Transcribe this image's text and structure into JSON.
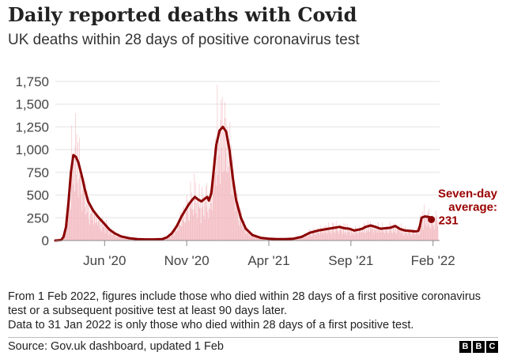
{
  "header": {
    "title": "Daily reported deaths with Covid",
    "subtitle": "UK deaths within 28 days of positive coronavirus test"
  },
  "footer": {
    "note_line1": "From 1 Feb 2022, figures include those who died within 28 days of a first positive coronavirus test or a subsequent positive test at least 90 days later.",
    "note_line2": "Data to 31 Jan 2022 is only those who died within 28 days of a first positive test.",
    "source": "Source: Gov.uk dashboard, updated 1 Feb",
    "logo": [
      "B",
      "B",
      "C"
    ]
  },
  "colors": {
    "average_line": "#8b0000",
    "daily_bars": "#f2b8be",
    "grid": "#e2e2e2",
    "axis": "#888888",
    "annotation": "#9a0000"
  },
  "chart_data": {
    "type": "line",
    "title": "Daily reported deaths with Covid",
    "subtitle": "UK deaths within 28 days of positive coronavirus test",
    "x_unit": "months since 1 Mar 2020",
    "xlim": [
      0,
      23.4
    ],
    "ylim": [
      0,
      1750
    ],
    "y_ticks": [
      0,
      250,
      500,
      750,
      1000,
      1250,
      1500,
      1750
    ],
    "y_tick_labels": [
      "0",
      "250",
      "500",
      "750",
      "1,000",
      "1,250",
      "1,500",
      "1,750"
    ],
    "x_ticks": [
      3,
      8,
      13,
      18,
      23
    ],
    "x_tick_labels": [
      "Jun '20",
      "Nov '20",
      "Apr '21",
      "Sep '21",
      "Feb '22"
    ],
    "grid": true,
    "series": [
      {
        "name": "Seven-day average",
        "x": [
          0,
          0.35,
          0.5,
          0.65,
          0.8,
          0.95,
          1.1,
          1.25,
          1.4,
          1.6,
          1.8,
          2.0,
          2.3,
          2.6,
          3.0,
          3.3,
          3.6,
          4.0,
          4.5,
          5.0,
          5.5,
          6.0,
          6.5,
          6.8,
          7.1,
          7.4,
          7.7,
          7.9,
          8.1,
          8.3,
          8.5,
          8.7,
          8.9,
          9.1,
          9.25,
          9.35,
          9.5,
          9.65,
          9.8,
          10.0,
          10.2,
          10.4,
          10.6,
          10.8,
          11.0,
          11.3,
          11.6,
          12.0,
          12.5,
          13.0,
          13.5,
          14.0,
          14.5,
          15.0,
          15.5,
          16.0,
          16.5,
          17.0,
          17.3,
          17.6,
          17.9,
          18.2,
          18.5,
          18.7,
          18.9,
          19.2,
          19.5,
          19.8,
          20.1,
          20.4,
          20.7,
          21.0,
          21.3,
          21.6,
          21.9,
          22.1,
          22.2,
          22.3,
          22.5,
          22.7,
          22.8,
          22.9
        ],
        "values": [
          0,
          5,
          40,
          150,
          420,
          750,
          940,
          920,
          860,
          720,
          560,
          430,
          330,
          260,
          180,
          120,
          80,
          45,
          25,
          15,
          12,
          12,
          15,
          35,
          80,
          160,
          270,
          330,
          390,
          440,
          480,
          450,
          430,
          460,
          480,
          440,
          520,
          780,
          1050,
          1210,
          1250,
          1200,
          1000,
          700,
          450,
          250,
          130,
          60,
          30,
          20,
          15,
          15,
          20,
          40,
          85,
          110,
          125,
          140,
          150,
          135,
          130,
          110,
          120,
          130,
          150,
          165,
          150,
          130,
          135,
          140,
          160,
          125,
          110,
          105,
          100,
          105,
          160,
          250,
          265,
          260,
          255,
          231
        ]
      }
    ],
    "daily_bars": {
      "name": "Daily deaths",
      "x_range": [
        0,
        23.3
      ],
      "count": 700
    },
    "annotation": {
      "lines": [
        "Seven-day",
        "average:",
        "231"
      ],
      "value": 231,
      "x": 22.9
    }
  }
}
